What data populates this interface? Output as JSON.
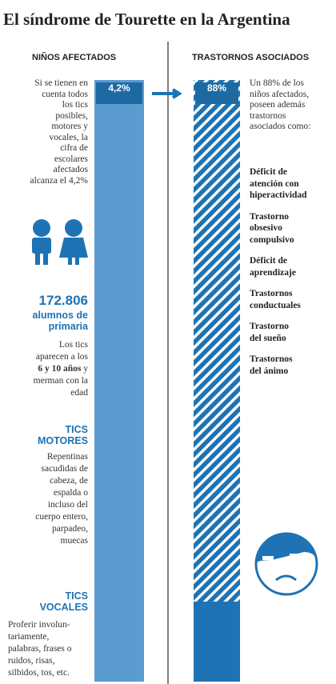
{
  "header": {
    "title": "El síndrome de Tourette en la Argentina"
  },
  "left": {
    "heading": "NIÑOS AFECTADOS",
    "bar_label": "4,2%",
    "intro": [
      "Si se tienen en",
      "cuenta todos",
      "los tics",
      "posibles,",
      "motores y",
      "vocales, la",
      "cifra de",
      "escolares",
      "afectados",
      "alcanza el 4,2%"
    ],
    "stat_number": "172.806",
    "stat_label": [
      "alumnos de",
      "primaria"
    ],
    "age_before": [
      "Los tics",
      "aparecen a los"
    ],
    "age_bold": "6 y 10 años",
    "age_after": "y",
    "age_rest": [
      "merman con la",
      "edad"
    ],
    "motor_title": [
      "TICS",
      "MOTORES"
    ],
    "motor_text": [
      "Repentinas",
      "sacudidas de",
      "cabeza, de",
      "espalda o",
      "incluso del",
      "cuerpo entero,",
      "parpadeo,",
      "muecas"
    ],
    "vocal_title": [
      "TICS",
      "VOCALES"
    ],
    "vocal_text": [
      "Proferir involun-",
      "tariamente,",
      "palabras, frases o",
      "ruidos, risas,",
      "silbidos, tos, etc."
    ]
  },
  "right": {
    "heading": "TRASTORNOS ASOCIADOS",
    "bar_label": "88%",
    "intro": [
      "Un 88% de los",
      "niños afectados,",
      "poseen además",
      "trastornos",
      "asociados como:"
    ],
    "disorders": [
      [
        "Déficit de",
        "atención con",
        "hiperactividad"
      ],
      [
        "Trastorno",
        "obsesivo",
        "compulsivo"
      ],
      [
        "Déficit de",
        "aprendizaje"
      ],
      [
        "Trastornos",
        "conductuales"
      ],
      [
        "Trastorno",
        "del sueño"
      ],
      [
        "Trastornos",
        "del ánimo"
      ]
    ]
  }
}
